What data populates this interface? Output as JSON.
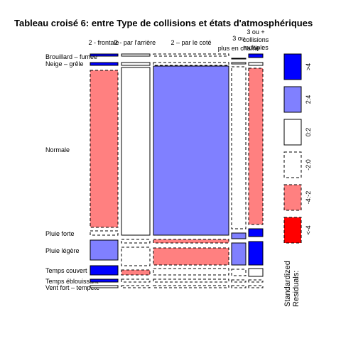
{
  "chart_data": {
    "type": "mosaic",
    "title": "Tableau croisé 6: entre Type de collisions et états d'atmosphériques",
    "columns": [
      {
        "label": "2 - frontale"
      },
      {
        "label": "2 - par l'arrière"
      },
      {
        "label": "2 – par le coté"
      },
      {
        "label": "3 ou plus en chaîne"
      },
      {
        "label": "3 ou + collisions multiples"
      }
    ],
    "rows": [
      {
        "label": "Brouillard – fumée"
      },
      {
        "label": "Neige – grêle"
      },
      {
        "label": "Normale"
      },
      {
        "label": "Pluie forte"
      },
      {
        "label": "Pluie légère"
      },
      {
        "label": "Temps couvert"
      },
      {
        "label": "Temps éblouissant"
      },
      {
        "label": "Vent fort – tempête"
      }
    ],
    "cells": [
      [
        {
          "r": ">4"
        },
        {
          "r": "0:2"
        },
        {
          "r": "-2:0"
        },
        {
          "r": "0:2"
        },
        {
          "r": ">4"
        }
      ],
      [
        {
          "r": ">4"
        },
        {
          "r": "0:2"
        },
        {
          "r": "-2:0"
        },
        {
          "r": "0:2"
        },
        {
          "r": "0:2"
        }
      ],
      [
        {
          "r": "-4:-2"
        },
        {
          "r": "0:2"
        },
        {
          "r": "2:4"
        },
        {
          "r": "-2:0"
        },
        {
          "r": "-4:-2"
        }
      ],
      [
        {
          "r": "-2:0"
        },
        {
          "r": "-2:0"
        },
        {
          "r": "-4:-2"
        },
        {
          "r": "2:4"
        },
        {
          "r": ">4"
        }
      ],
      [
        {
          "r": "2:4"
        },
        {
          "r": "-2:0"
        },
        {
          "r": "-4:-2"
        },
        {
          "r": "2:4"
        },
        {
          "r": ">4"
        }
      ],
      [
        {
          "r": ">4"
        },
        {
          "r": "-4:-2"
        },
        {
          "r": "-2:0"
        },
        {
          "r": "-2:0"
        },
        {
          "r": "0:2"
        }
      ],
      [
        {
          "r": ">4"
        },
        {
          "r": "-2:0"
        },
        {
          "r": "-2:0"
        },
        {
          "r": "-2:0"
        },
        {
          "r": "-2:0"
        }
      ],
      [
        {
          "r": "0:2"
        },
        {
          "r": "-2:0"
        },
        {
          "r": "-2:0"
        },
        {
          "r": "-2:0"
        },
        {
          "r": "-2:0"
        }
      ]
    ],
    "legend": {
      "title_lines": [
        "Standardized",
        "Residuals:"
      ],
      "position": "right",
      "entries": [
        {
          "key": ">4",
          "label": ">4",
          "fill": "#0000ff",
          "dashed": false
        },
        {
          "key": "2:4",
          "label": "2:4",
          "fill": "#8080ff",
          "dashed": false
        },
        {
          "key": "0:2",
          "label": "0:2",
          "fill": "#ffffff",
          "dashed": false
        },
        {
          "key": "-2:0",
          "label": "-2:0",
          "fill": "#ffffff",
          "dashed": true
        },
        {
          "key": "-4:-2",
          "label": "-4:-2",
          "fill": "#ff8080",
          "dashed": true
        },
        {
          "key": "<-4",
          "label": "<-4",
          "fill": "#ff0000",
          "dashed": true
        }
      ]
    }
  }
}
